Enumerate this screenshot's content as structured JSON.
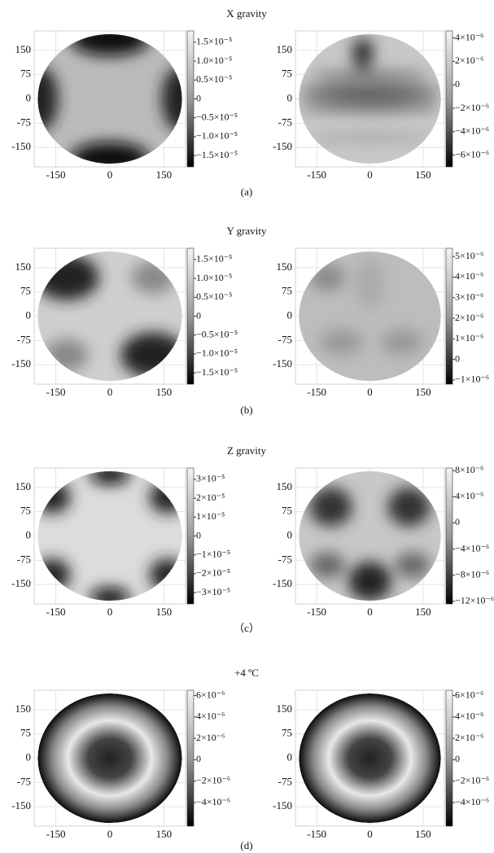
{
  "rows": [
    {
      "title": "X gravity",
      "label": "(a)",
      "panels": [
        {
          "type": "heatmap",
          "xlim": [
            -210,
            210
          ],
          "xticks": [
            -150,
            0,
            150
          ],
          "ylim": [
            -210,
            210
          ],
          "yticks": [
            150,
            75,
            0,
            -75,
            -150
          ],
          "clim": [
            -1.8e-05,
            1.8e-05
          ],
          "cticks": [
            {
              "value": 1.5e-05,
              "label": "1.5×10⁻⁵"
            },
            {
              "value": 1e-05,
              "label": "1.0×10⁻⁵"
            },
            {
              "value": 5e-06,
              "label": "0.5×10⁻⁵"
            },
            0,
            {
              "value": -5e-06,
              "label": "−0.5×10⁻⁵"
            },
            {
              "value": -1e-05,
              "label": "−1.0×10⁻⁵"
            },
            {
              "value": -1.5e-05,
              "label": "−1.5×10⁻⁵"
            }
          ]
        },
        {
          "type": "heatmap",
          "xlim": [
            -210,
            210
          ],
          "xticks": [
            -150,
            0,
            150
          ],
          "ylim": [
            -210,
            210
          ],
          "yticks": [
            150,
            75,
            0,
            -75,
            -150
          ],
          "clim": [
            -7e-06,
            4.6e-06
          ],
          "cticks": [
            {
              "value": 4e-06,
              "label": "4×10⁻⁶"
            },
            {
              "value": 2e-06,
              "label": "2×10⁻⁶"
            },
            0,
            {
              "value": -2e-06,
              "label": "−2×10⁻⁶"
            },
            {
              "value": -4e-06,
              "label": "−4×10⁻⁶"
            },
            {
              "value": -6e-06,
              "label": "−6×10⁻⁶"
            }
          ]
        }
      ]
    },
    {
      "title": "Y gravity",
      "label": "(b)",
      "panels": [
        {
          "type": "heatmap",
          "xlim": [
            -210,
            210
          ],
          "xticks": [
            -150,
            0,
            150
          ],
          "ylim": [
            -210,
            210
          ],
          "yticks": [
            150,
            75,
            0,
            -75,
            -150
          ],
          "clim": [
            -1.8e-05,
            1.8e-05
          ],
          "cticks": [
            {
              "value": 1.5e-05,
              "label": "1.5×10⁻⁵"
            },
            {
              "value": 1e-05,
              "label": "1.0×10⁻⁵"
            },
            {
              "value": 5e-06,
              "label": "0.5×10⁻⁵"
            },
            0,
            {
              "value": -5e-06,
              "label": "−0.5×10⁻⁵"
            },
            {
              "value": -1e-05,
              "label": "−1.0×10⁻⁵"
            },
            {
              "value": -1.5e-05,
              "label": "−1.5×10⁻⁵"
            }
          ]
        },
        {
          "type": "heatmap",
          "xlim": [
            -210,
            210
          ],
          "xticks": [
            -150,
            0,
            150
          ],
          "ylim": [
            -210,
            210
          ],
          "yticks": [
            150,
            75,
            0,
            -75,
            -150
          ],
          "clim": [
            -1.2e-06,
            5.4e-06
          ],
          "cticks": [
            {
              "value": 5e-06,
              "label": "5×10⁻⁶"
            },
            {
              "value": 4e-06,
              "label": "4×10⁻⁶"
            },
            {
              "value": 3e-06,
              "label": "3×10⁻⁶"
            },
            {
              "value": 2e-06,
              "label": "2×10⁻⁶"
            },
            {
              "value": 1e-06,
              "label": "1×10⁻⁶"
            },
            0,
            {
              "value": -1e-06,
              "label": "−1×10⁻⁶"
            }
          ]
        }
      ]
    },
    {
      "title": "Z gravity",
      "label": "（c）",
      "panels": [
        {
          "type": "heatmap",
          "xlim": [
            -210,
            210
          ],
          "xticks": [
            -150,
            0,
            150
          ],
          "ylim": [
            -210,
            210
          ],
          "yticks": [
            150,
            75,
            0,
            -75,
            -150
          ],
          "clim": [
            -3.6e-05,
            3.6e-05
          ],
          "cticks": [
            {
              "value": 3e-05,
              "label": "3×10⁻⁵"
            },
            {
              "value": 2e-05,
              "label": "2×10⁻⁵"
            },
            {
              "value": 1e-05,
              "label": "1×10⁻⁵"
            },
            0,
            {
              "value": -1e-05,
              "label": "−1×10⁻⁵"
            },
            {
              "value": -2e-05,
              "label": "−2×10⁻⁵"
            },
            {
              "value": -3e-05,
              "label": "−3×10⁻⁵"
            }
          ]
        },
        {
          "type": "heatmap",
          "xlim": [
            -210,
            210
          ],
          "xticks": [
            -150,
            0,
            150
          ],
          "ylim": [
            -210,
            210
          ],
          "yticks": [
            150,
            75,
            0,
            -75,
            -150
          ],
          "clim": [
            -1.24e-05,
            8.4e-06
          ],
          "cticks": [
            {
              "value": 8e-06,
              "label": "8×10⁻⁶"
            },
            {
              "value": 4e-06,
              "label": "4×10⁻⁶"
            },
            0,
            {
              "value": -4e-06,
              "label": "−4×10⁻⁶"
            },
            {
              "value": -8e-06,
              "label": "−8×10⁻⁶"
            },
            {
              "value": -1.2e-05,
              "label": "−12×10⁻⁶"
            }
          ]
        }
      ]
    },
    {
      "title": "+4 ºC",
      "label": "(d)",
      "panels": [
        {
          "type": "heatmap",
          "xlim": [
            -210,
            210
          ],
          "xticks": [
            -150,
            0,
            150
          ],
          "ylim": [
            -210,
            210
          ],
          "yticks": [
            150,
            75,
            0,
            -75,
            -150
          ],
          "clim": [
            -6.2e-06,
            6.5e-06
          ],
          "cticks": [
            {
              "value": 6e-06,
              "label": "6×10⁻⁶"
            },
            {
              "value": 4e-06,
              "label": "4×10⁻⁶"
            },
            {
              "value": 2e-06,
              "label": "2×10⁻⁶"
            },
            0,
            {
              "value": -2e-06,
              "label": "−2×10⁻⁶"
            },
            {
              "value": -4e-06,
              "label": "−4×10⁻⁶"
            }
          ]
        },
        {
          "type": "heatmap",
          "xlim": [
            -210,
            210
          ],
          "xticks": [
            -150,
            0,
            150
          ],
          "ylim": [
            -210,
            210
          ],
          "yticks": [
            150,
            75,
            0,
            -75,
            -150
          ],
          "clim": [
            -6.2e-06,
            6.5e-06
          ],
          "cticks": [
            {
              "value": 6e-06,
              "label": "6×10⁻⁶"
            },
            {
              "value": 4e-06,
              "label": "4×10⁻⁶"
            },
            {
              "value": 2e-06,
              "label": "2×10⁻⁶"
            },
            0,
            {
              "value": -2e-06,
              "label": "−2×10⁻⁶"
            },
            {
              "value": -4e-06,
              "label": "−4×10⁻⁶"
            }
          ]
        }
      ]
    }
  ]
}
